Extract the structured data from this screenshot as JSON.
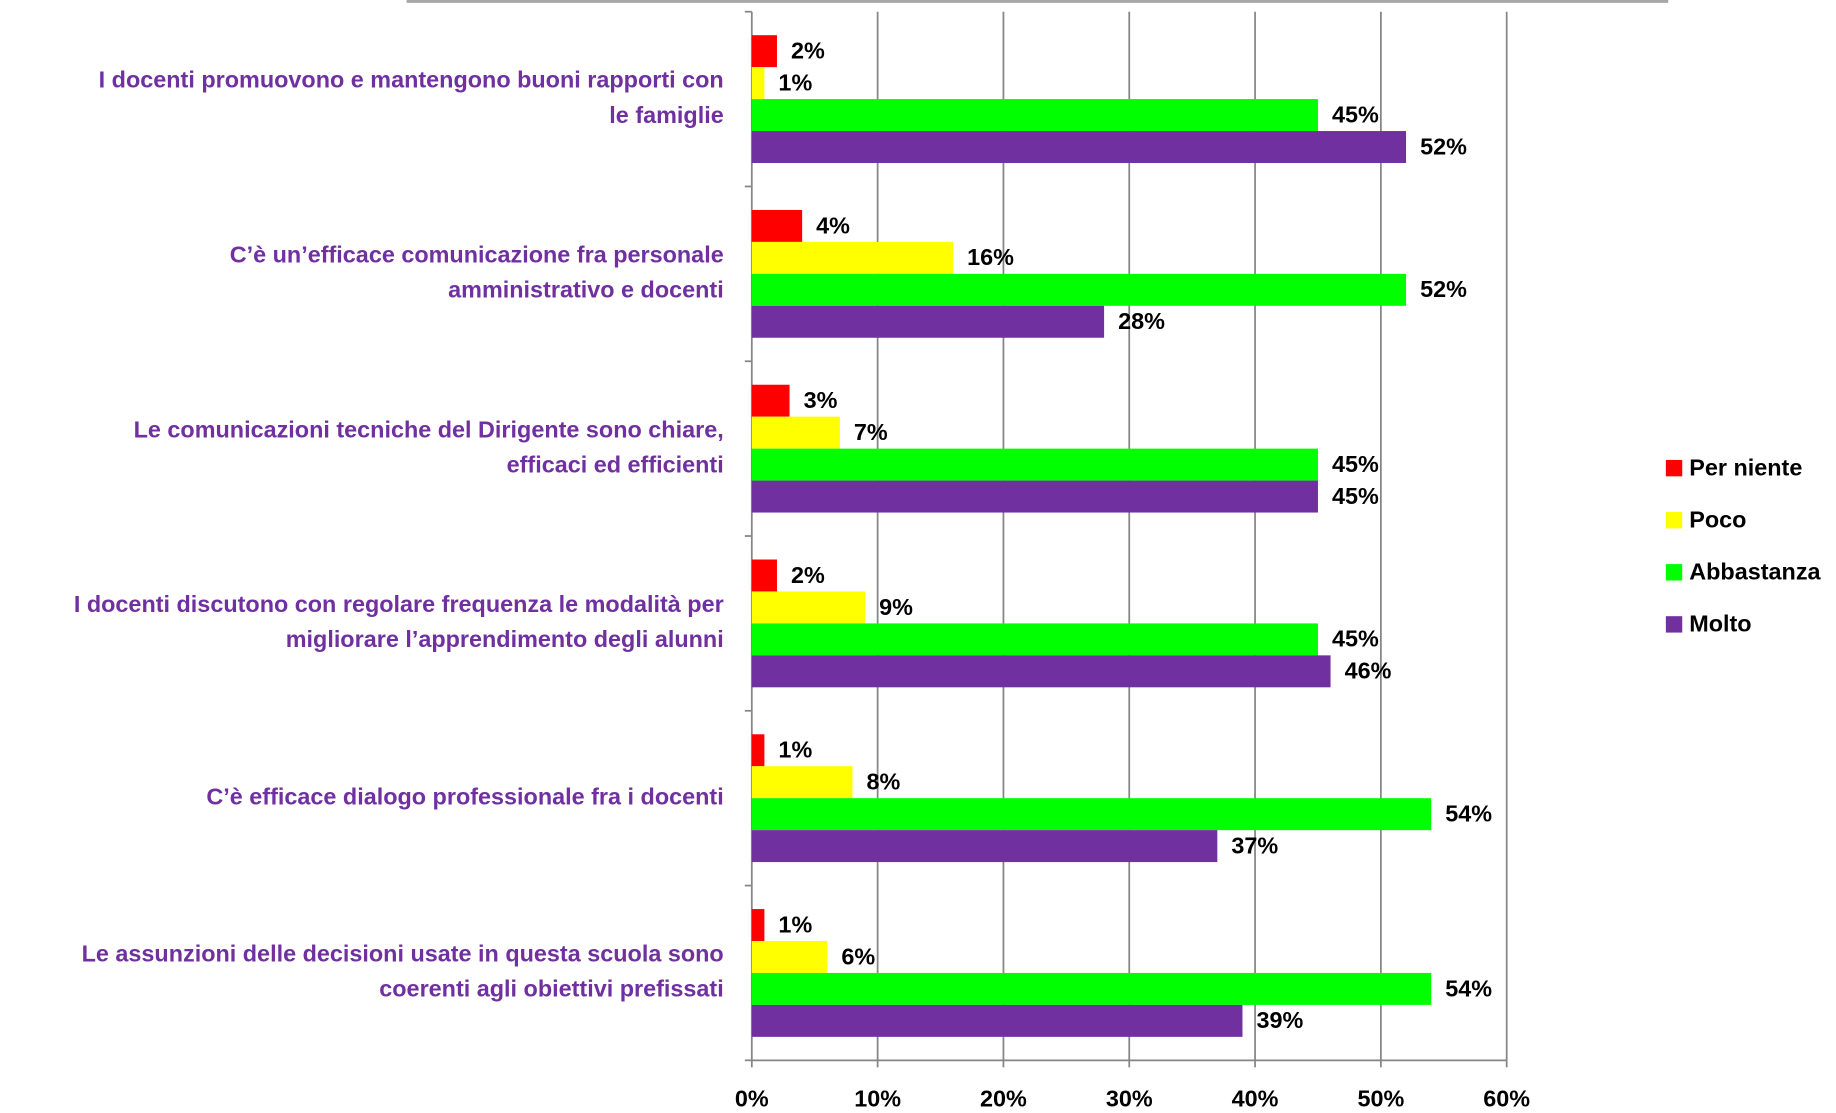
{
  "chart_data": {
    "type": "barh",
    "categories": [
      [
        "I docenti  promuovono e mantengono buoni rapporti con",
        "le famiglie"
      ],
      [
        "C’è un’efficace comunicazione fra personale",
        "amministrativo e docenti"
      ],
      [
        "Le comunicazioni tecniche del Dirigente sono chiare,",
        "efficaci ed efficienti"
      ],
      [
        "I docenti discutono con regolare frequenza le modalità per",
        "migliorare l’apprendimento degli alunni"
      ],
      [
        "C’è efficace dialogo professionale fra i docenti"
      ],
      [
        "Le assunzioni delle decisioni usate in questa scuola sono",
        "coerenti agli obiettivi prefissati"
      ]
    ],
    "series": [
      {
        "name": "Per niente",
        "color": "#ff0000",
        "values": [
          2,
          4,
          3,
          2,
          1,
          1
        ],
        "value_labels": [
          "2%",
          "4%",
          "3%",
          "2%",
          "1%",
          "1%"
        ]
      },
      {
        "name": "Poco",
        "color": "#ffff00",
        "values": [
          1,
          16,
          7,
          9,
          8,
          6
        ],
        "value_labels": [
          "1%",
          "16%",
          "7%",
          "9%",
          "8%",
          "6%"
        ]
      },
      {
        "name": "Abbastanza",
        "color": "#00ff00",
        "values": [
          45,
          52,
          45,
          45,
          54,
          54
        ],
        "value_labels": [
          "45%",
          "52%",
          "45%",
          "45%",
          "54%",
          "54%"
        ]
      },
      {
        "name": "Molto",
        "color": "#7030a0",
        "values": [
          52,
          28,
          45,
          46,
          37,
          39
        ],
        "value_labels": [
          "52%",
          "28%",
          "45%",
          "46%",
          "37%",
          "39%"
        ]
      }
    ],
    "xlim": [
      0,
      60
    ],
    "xticks": [
      {
        "value": 0,
        "label": "0%"
      },
      {
        "value": 10,
        "label": "10%"
      },
      {
        "value": 20,
        "label": "20%"
      },
      {
        "value": 30,
        "label": "30%"
      },
      {
        "value": 40,
        "label": "40%"
      },
      {
        "value": 50,
        "label": "50%"
      },
      {
        "value": 60,
        "label": "60%"
      }
    ],
    "grid": true,
    "legend": "right"
  }
}
